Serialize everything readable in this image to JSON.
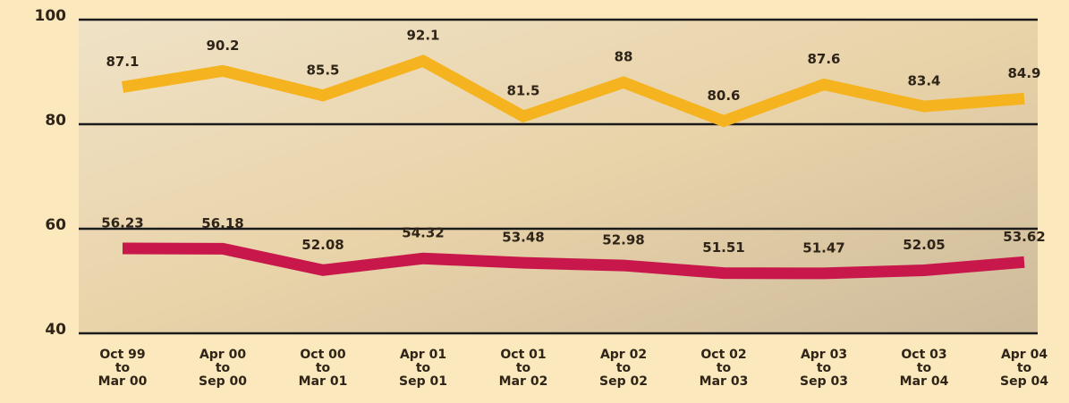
{
  "chart_data": {
    "type": "line",
    "categories": [
      "Oct 99\nto\nMar 00",
      "Apr 00\nto\nSep 00",
      "Oct 00\nto\nMar 01",
      "Apr 01\nto\nSep 01",
      "Oct 01\nto\nMar 02",
      "Apr 02\nto\nSep 02",
      "Oct 02\nto\nMar 03",
      "Apr 03\nto\nSep 03",
      "Oct 03\nto\nMar 04",
      "Apr 04\nto\nSep 04"
    ],
    "series": [
      {
        "color": "#f5b320",
        "values": [
          87.1,
          90.2,
          85.5,
          92.1,
          81.5,
          88,
          80.6,
          87.6,
          83.4,
          84.9
        ]
      },
      {
        "color": "#c8174a",
        "values": [
          56.23,
          56.18,
          52.08,
          54.32,
          53.48,
          52.98,
          51.51,
          51.47,
          52.05,
          53.62
        ]
      }
    ],
    "ylim": [
      40,
      100
    ],
    "yticks": [
      40,
      60,
      80,
      100
    ],
    "grid": true
  }
}
